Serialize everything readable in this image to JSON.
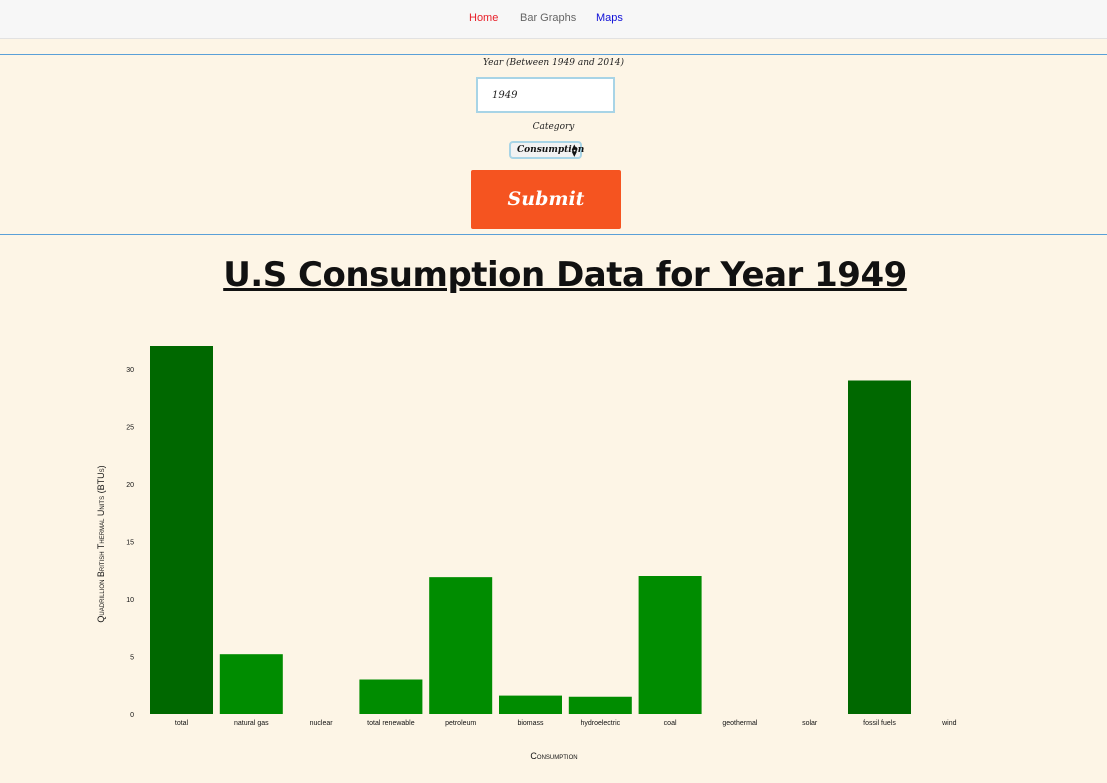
{
  "nav": {
    "home": "Home",
    "bar_graphs": "Bar Graphs",
    "maps": "Maps"
  },
  "form": {
    "year_label": "Year (Between 1949 and 2014)",
    "year_value": "1949",
    "category_label": "Category",
    "category_value": "Consumption",
    "submit_label": "Submit"
  },
  "colors": {
    "accent": "#f55420",
    "bar_dark": "#006800",
    "bar_light": "#008c00",
    "background": "#fdf5e6"
  },
  "chart_data": {
    "type": "bar",
    "title": "U.S Consumption Data for Year 1949",
    "xlabel": "Consumption",
    "ylabel": "Quadrillion British Thermal Units (BTUs)",
    "ylim": [
      0,
      33
    ],
    "yticks": [
      0,
      5,
      10,
      15,
      20,
      25,
      30
    ],
    "categories": [
      "total",
      "natural gas",
      "nuclear",
      "total renewable",
      "petroleum",
      "biomass",
      "hydroelectric",
      "coal",
      "geothermal",
      "solar",
      "fossil fuels",
      "wind"
    ],
    "values": [
      32.0,
      5.2,
      0,
      3.0,
      11.9,
      1.6,
      1.5,
      12.0,
      0,
      0,
      29.0,
      0
    ],
    "bar_colors": [
      "#006800",
      "#008c00",
      "#008c00",
      "#008c00",
      "#008c00",
      "#008c00",
      "#008c00",
      "#008c00",
      "#008c00",
      "#008c00",
      "#006800",
      "#008c00"
    ],
    "grid": false,
    "legend": "none"
  }
}
